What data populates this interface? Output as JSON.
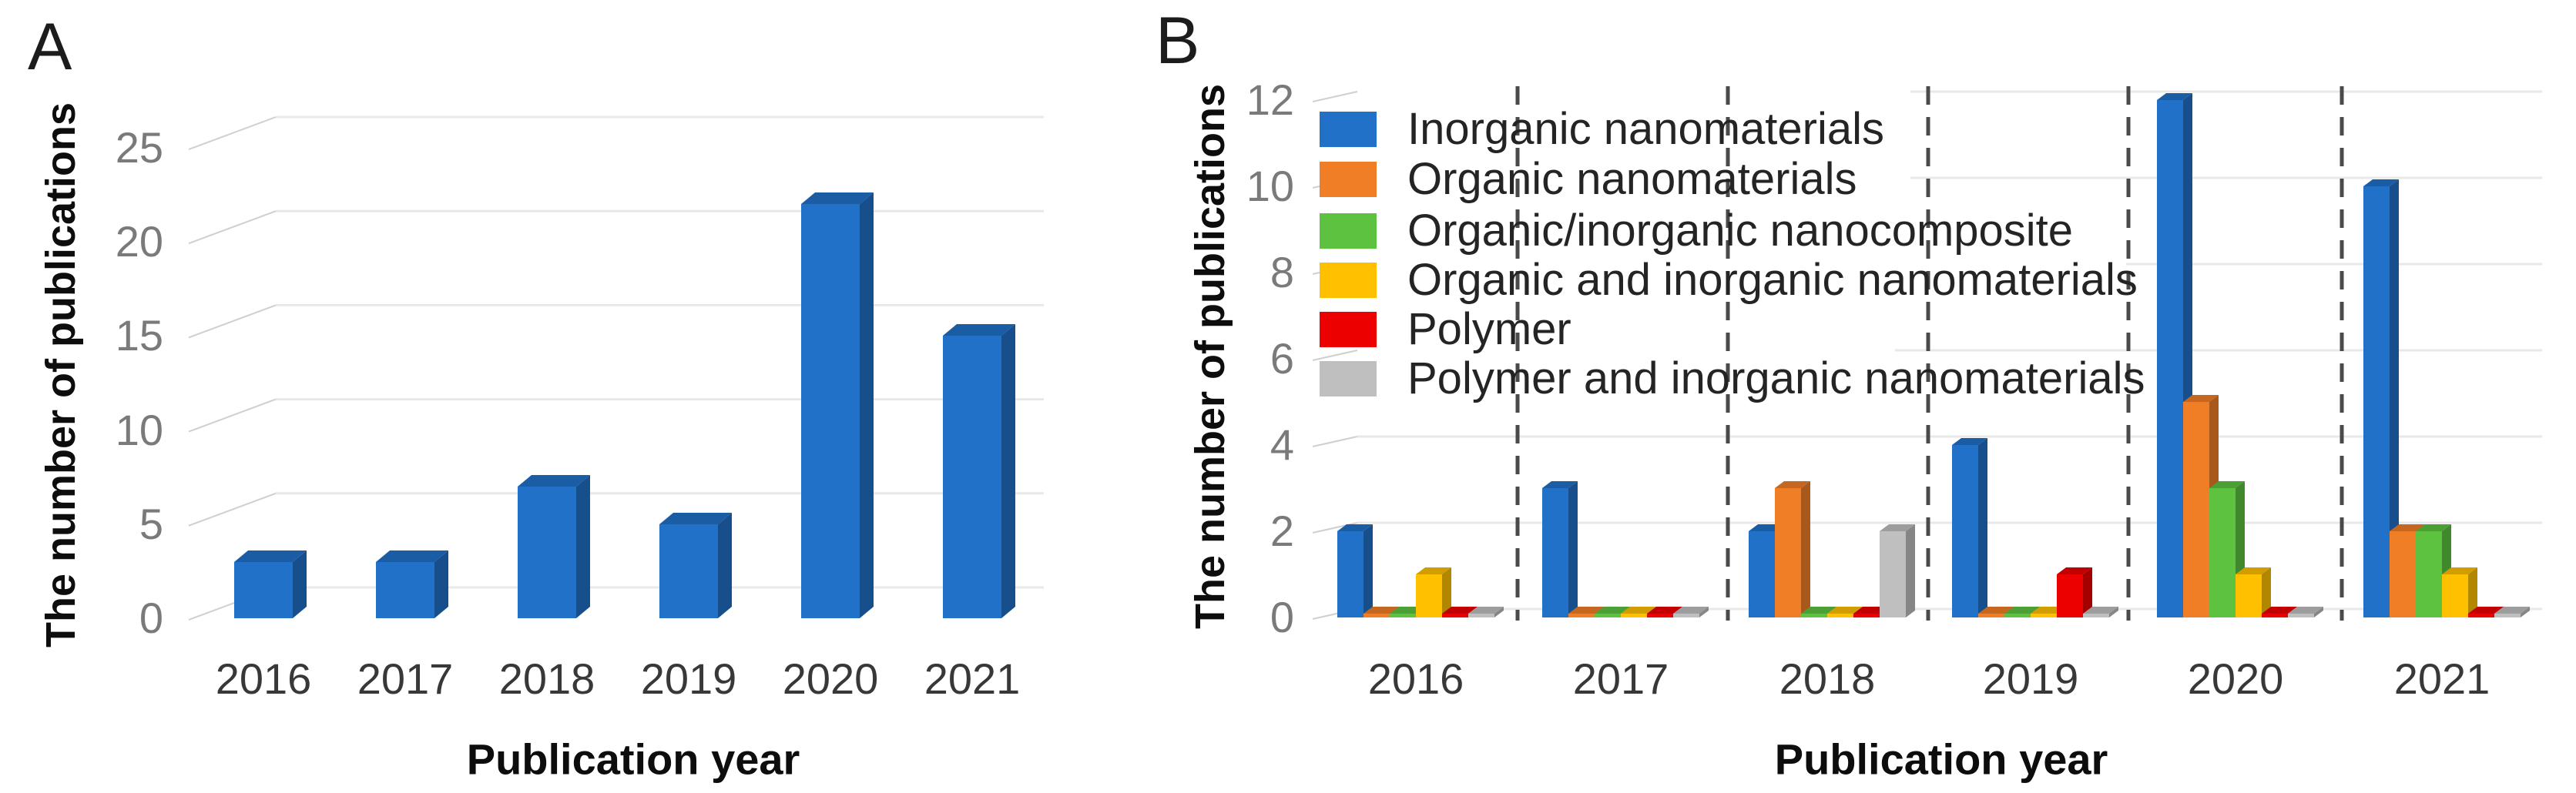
{
  "panel_a": {
    "label": "A",
    "y_axis_title": "The number of publications",
    "x_axis_title": "Publication year",
    "y_ticks": [
      0,
      5,
      10,
      15,
      20,
      25
    ]
  },
  "panel_b": {
    "label": "B",
    "y_axis_title": "The number of publications",
    "x_axis_title": "Publication year",
    "y_ticks": [
      0,
      2,
      4,
      6,
      8,
      10,
      12
    ]
  },
  "chart_data": [
    {
      "type": "bar",
      "title": "",
      "categories": [
        "2016",
        "2017",
        "2018",
        "2019",
        "2020",
        "2021"
      ],
      "values": [
        3,
        3,
        7,
        5,
        22,
        15
      ],
      "xlabel": "Publication year",
      "ylabel": "The number of publications",
      "ylim": [
        0,
        25
      ],
      "grid": true,
      "style": "3d-column",
      "bar_color": "#2171C9"
    },
    {
      "type": "bar",
      "title": "",
      "categories": [
        "2016",
        "2017",
        "2018",
        "2019",
        "2020",
        "2021"
      ],
      "series": [
        {
          "name": "Inorganic nanomaterials",
          "color": "#2171C9",
          "values": [
            2,
            3,
            2,
            4,
            12,
            10
          ]
        },
        {
          "name": "Organic nanomaterials",
          "color": "#F07E26",
          "values": [
            0,
            0,
            3,
            0,
            5,
            2
          ]
        },
        {
          "name": "Organic/inorganic nanocomposite",
          "color": "#5CC23F",
          "values": [
            0,
            0,
            0,
            0,
            3,
            2
          ]
        },
        {
          "name": "Organic and inorganic nanomaterials",
          "color": "#FFC000",
          "values": [
            1,
            0,
            0,
            0,
            1,
            1
          ]
        },
        {
          "name": "Polymer",
          "color": "#EC0000",
          "values": [
            0,
            0,
            0,
            1,
            0,
            0
          ]
        },
        {
          "name": "Polymer and inorganic nanomaterials",
          "color": "#BFBFBF",
          "values": [
            0,
            0,
            2,
            0,
            0,
            0
          ]
        }
      ],
      "xlabel": "Publication year",
      "ylabel": "The number of publications",
      "ylim": [
        0,
        12
      ],
      "grid": true,
      "style": "3d-column",
      "legend_position": "upper-left",
      "group_separator": "dashed"
    }
  ],
  "colors": {
    "gridline": "#E8E8E8",
    "axis_tick": "#CFCFCF",
    "separator": "#4A4A4A",
    "tick_text": "#7A7A7A",
    "category_text": "#383838"
  }
}
